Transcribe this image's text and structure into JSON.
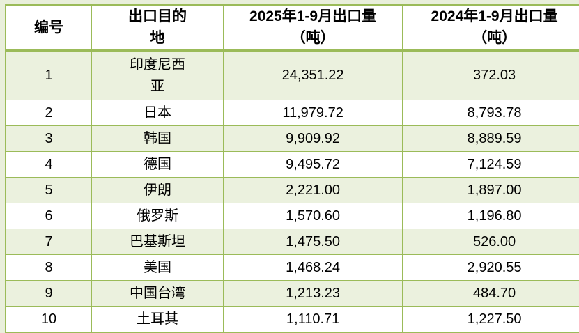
{
  "page": {
    "background_color": "#e9efdb"
  },
  "table": {
    "border_color": "#9bbb59",
    "band_color": "#ebf1de",
    "columns": [
      {
        "id": "index",
        "label": "编号"
      },
      {
        "id": "destination",
        "label": "出口目的\n地"
      },
      {
        "id": "vol_2025",
        "label": "2025年1-9月出口量\n（吨）"
      },
      {
        "id": "vol_2024",
        "label": "2024年1-9月出口量\n（吨）"
      }
    ],
    "rows": [
      {
        "index": "1",
        "destination": "印度尼西\n亚",
        "vol_2025": "24,351.22",
        "vol_2024": "372.03"
      },
      {
        "index": "2",
        "destination": "日本",
        "vol_2025": "11,979.72",
        "vol_2024": "8,793.78"
      },
      {
        "index": "3",
        "destination": "韩国",
        "vol_2025": "9,909.92",
        "vol_2024": "8,889.59"
      },
      {
        "index": "4",
        "destination": "德国",
        "vol_2025": "9,495.72",
        "vol_2024": "7,124.59"
      },
      {
        "index": "5",
        "destination": "伊朗",
        "vol_2025": "2,221.00",
        "vol_2024": "1,897.00"
      },
      {
        "index": "6",
        "destination": "俄罗斯",
        "vol_2025": "1,570.60",
        "vol_2024": "1,196.80"
      },
      {
        "index": "7",
        "destination": "巴基斯坦",
        "vol_2025": "1,475.50",
        "vol_2024": "526.00"
      },
      {
        "index": "8",
        "destination": "美国",
        "vol_2025": "1,468.24",
        "vol_2024": "2,920.55"
      },
      {
        "index": "9",
        "destination": "中国台湾",
        "vol_2025": "1,213.23",
        "vol_2024": "484.70"
      },
      {
        "index": "10",
        "destination": "土耳其",
        "vol_2025": "1,110.71",
        "vol_2024": "1,227.50"
      }
    ]
  }
}
